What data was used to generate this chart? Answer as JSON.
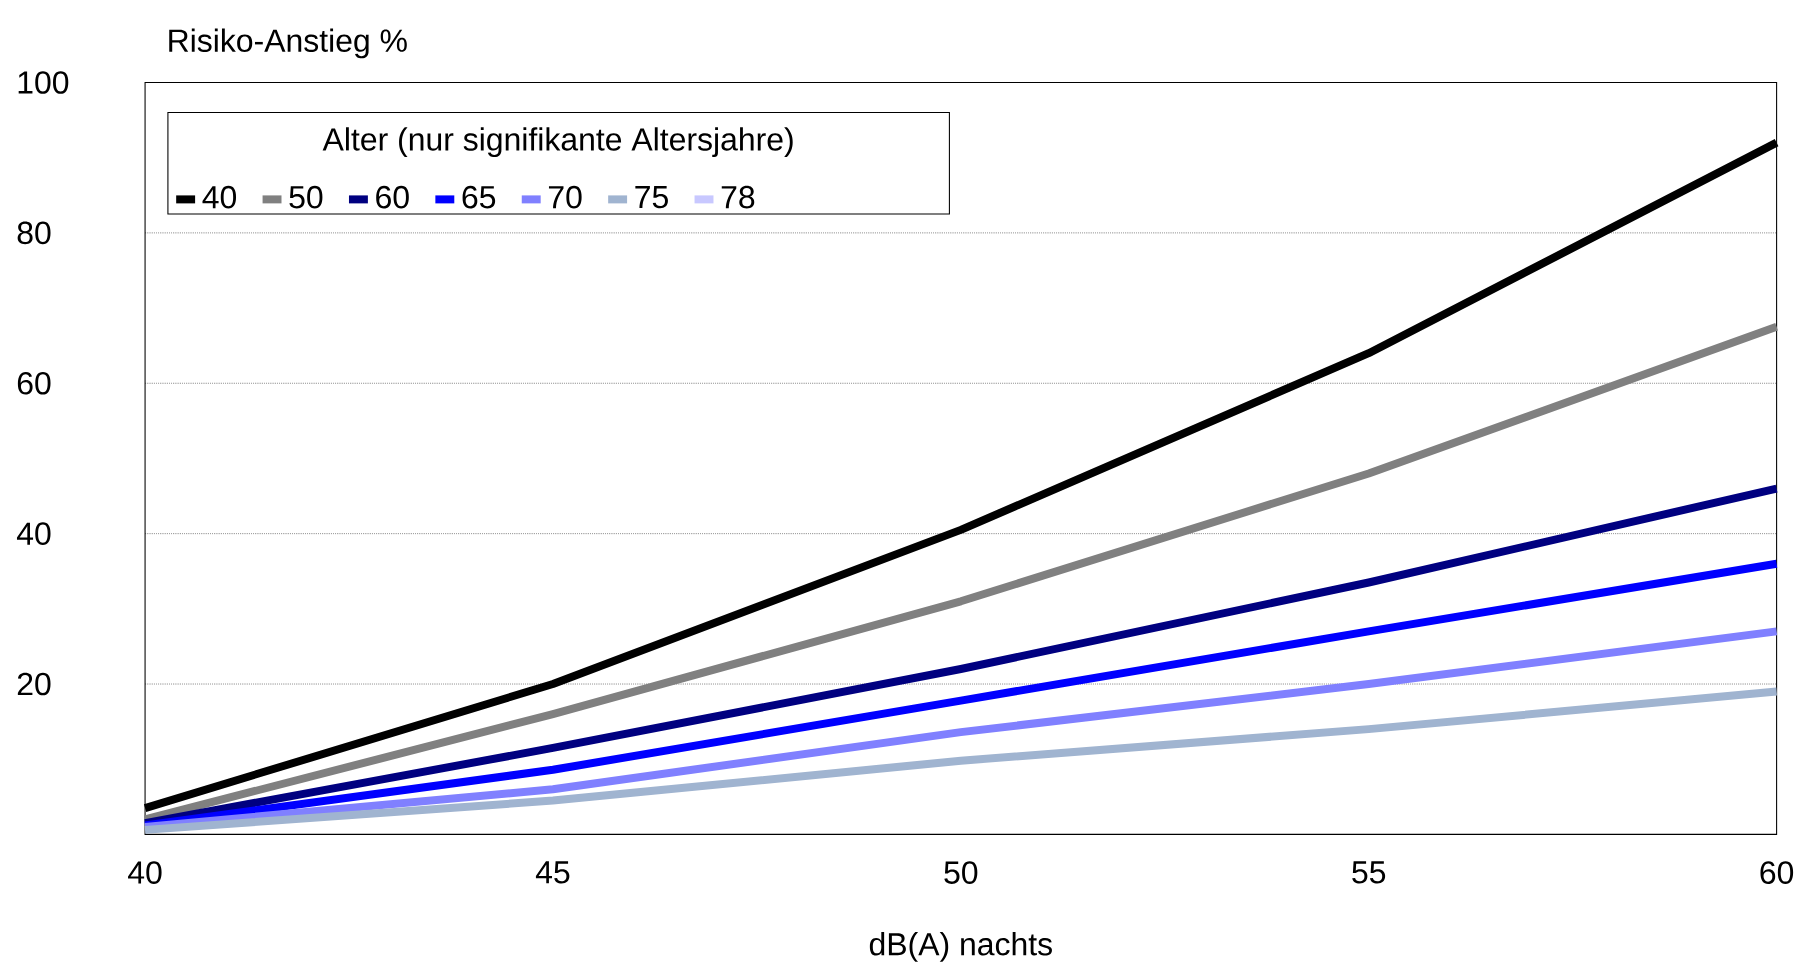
{
  "chart_data": {
    "type": "line",
    "ylabel": "Risiko-Anstieg %",
    "xlabel": "dB(A) nachts",
    "legend_title": "Alter (nur signifikante Altersjahre)",
    "x": [
      40,
      45,
      50,
      55,
      60
    ],
    "series": [
      {
        "name": "40",
        "color": "#000000",
        "values": [
          3.5,
          20,
          40.5,
          64,
          92
        ]
      },
      {
        "name": "50",
        "color": "#808080",
        "values": [
          2,
          16,
          31,
          48,
          67.5
        ]
      },
      {
        "name": "60",
        "color": "#000080",
        "values": [
          1.5,
          11.5,
          22,
          33.5,
          46
        ]
      },
      {
        "name": "65",
        "color": "#0000ff",
        "values": [
          1.2,
          8.6,
          17.8,
          27,
          36
        ]
      },
      {
        "name": "70",
        "color": "#8080ff",
        "values": [
          1,
          6,
          13.6,
          20,
          27
        ]
      },
      {
        "name": "75",
        "color": "#a0b4d0",
        "values": [
          0.6,
          4.5,
          9.8,
          14,
          19
        ]
      },
      {
        "name": "78",
        "color": "#c8c8ff",
        "values": [
          null,
          null,
          null,
          null,
          null
        ]
      }
    ],
    "xlim": [
      40,
      60
    ],
    "ylim": [
      0,
      100
    ],
    "xticks": [
      40,
      45,
      50,
      55,
      60
    ],
    "yticks": [
      20,
      40,
      60,
      80,
      100
    ],
    "grid": "y",
    "legend": "top left",
    "marker": "none",
    "line_style": "solid"
  }
}
